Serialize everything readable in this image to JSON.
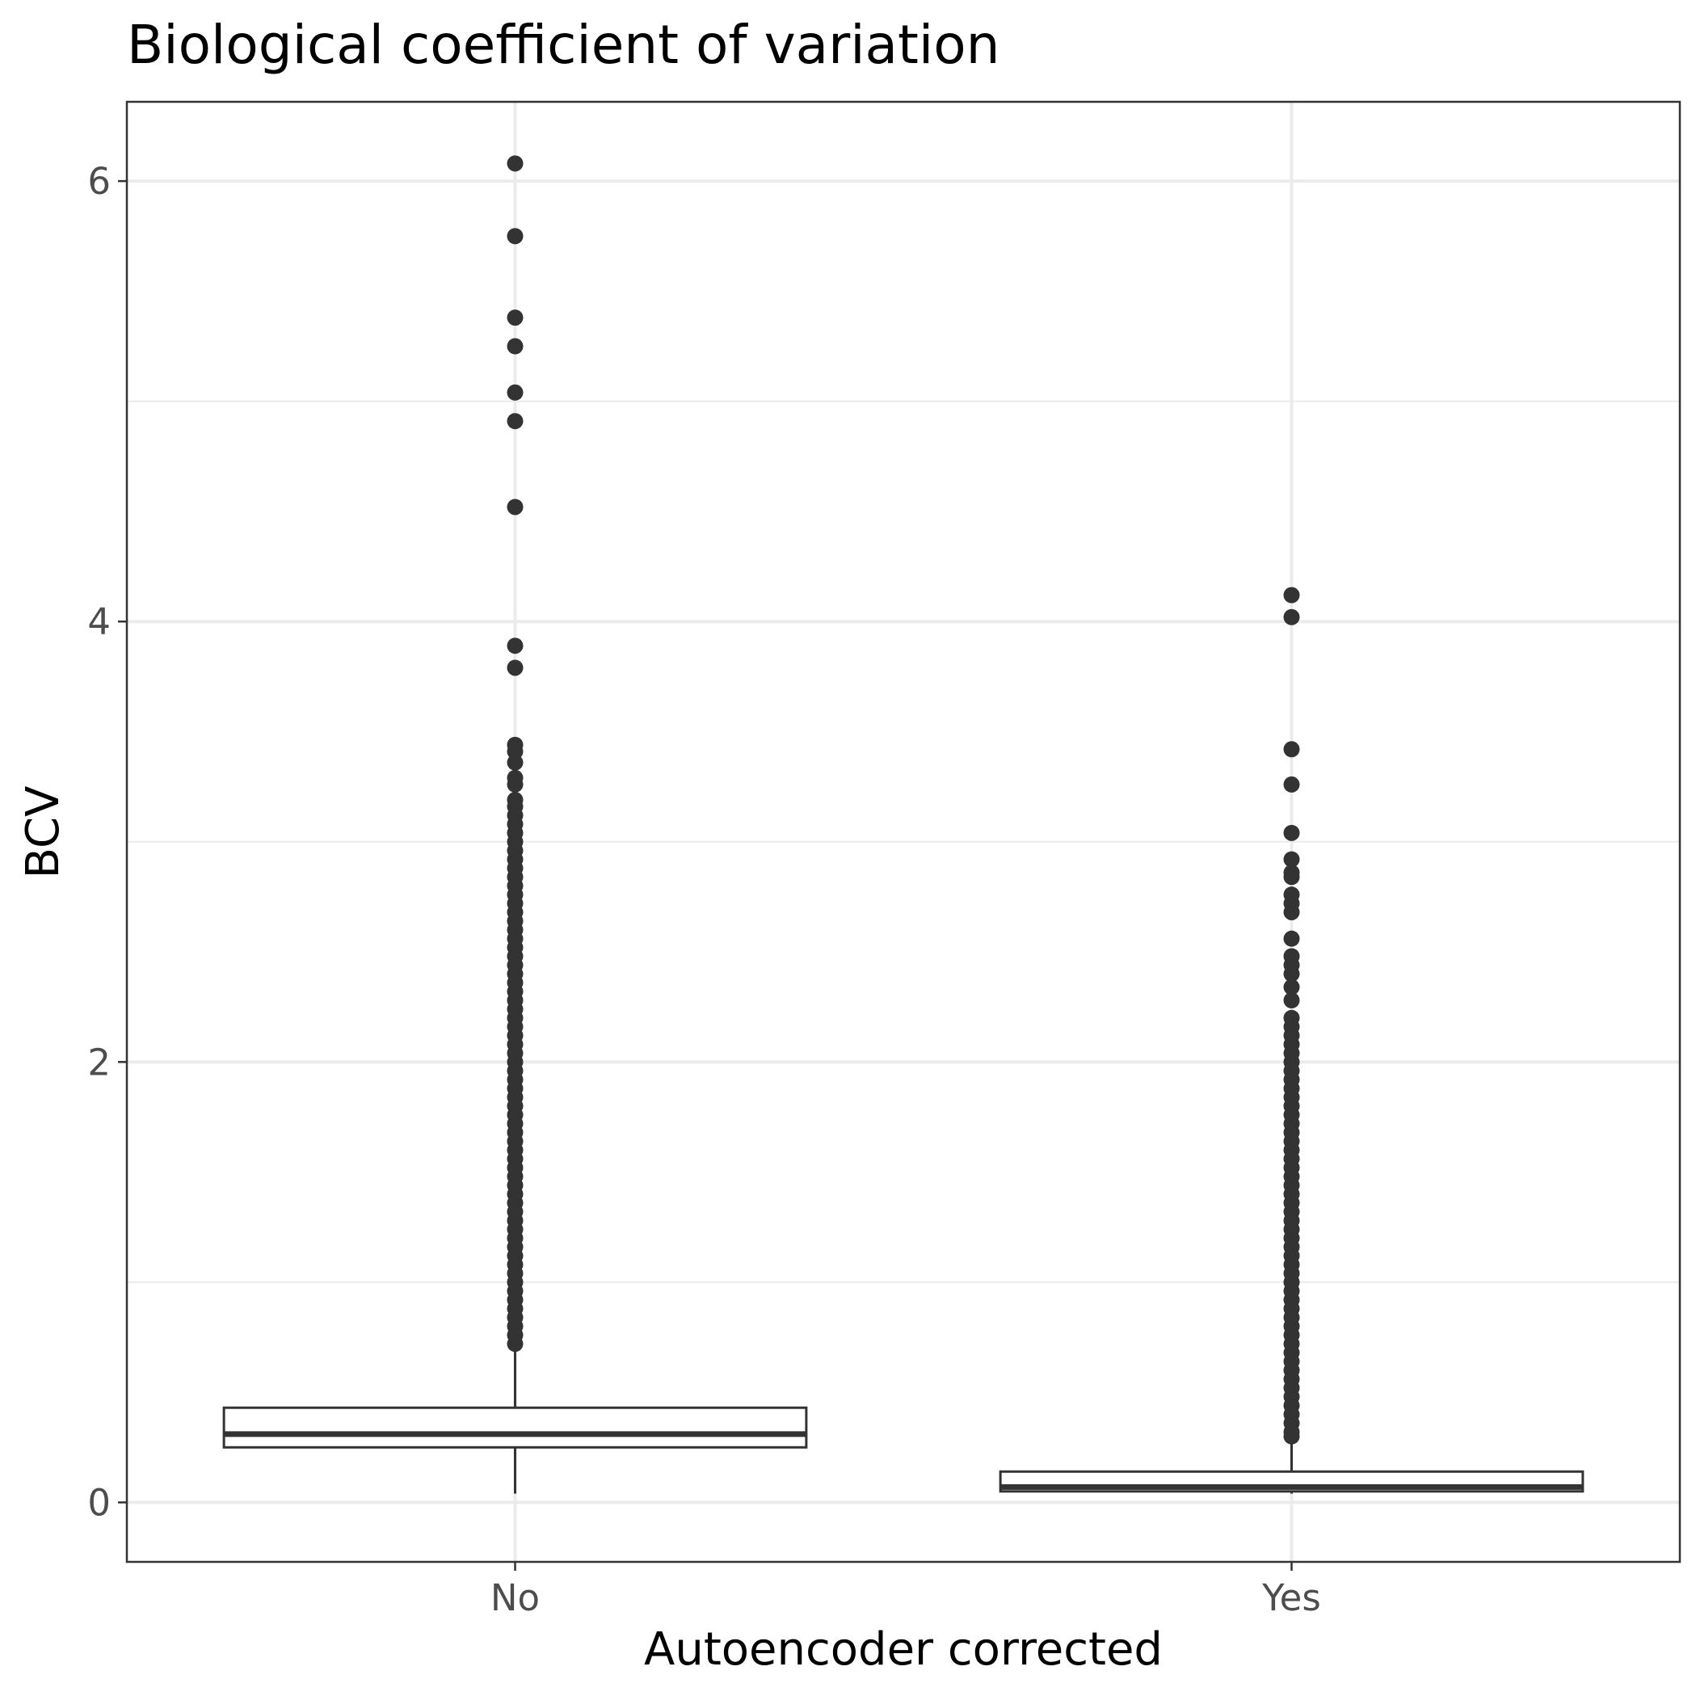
{
  "chart_data": {
    "type": "boxplot",
    "title": "Biological coefficient of variation",
    "xlabel": "Autoencoder corrected",
    "ylabel": "BCV",
    "categories": [
      "No",
      "Yes"
    ],
    "ylim": [
      -0.27,
      6.36
    ],
    "yticks": [
      0,
      2,
      4,
      6
    ],
    "grid": true,
    "colors": {
      "box_line": "#333333",
      "box_fill": "#ffffff",
      "point": "#333333",
      "grid": "#ebebeb",
      "panel_border": "#333333"
    },
    "boxes": [
      {
        "category": "No",
        "whisker_low": 0.04,
        "q1": 0.25,
        "median": 0.31,
        "q3": 0.43,
        "whisker_high": 0.7,
        "outliers": [
          6.08,
          5.75,
          5.38,
          5.25,
          5.04,
          4.91,
          4.52,
          3.89,
          3.79,
          3.44,
          3.41,
          3.36,
          3.29,
          3.26,
          3.19,
          3.16,
          3.12,
          3.08,
          3.04,
          3.0,
          2.96,
          2.92,
          2.88,
          2.84,
          2.8,
          2.76,
          2.72,
          2.68,
          2.64,
          2.6,
          2.56,
          2.52,
          2.48,
          2.44,
          2.4,
          2.36,
          2.32,
          2.28,
          2.24,
          2.2,
          2.16,
          2.12,
          2.08,
          2.04,
          2.0,
          1.96,
          1.92,
          1.88,
          1.84,
          1.8,
          1.76,
          1.72,
          1.68,
          1.64,
          1.6,
          1.56,
          1.52,
          1.48,
          1.44,
          1.4,
          1.36,
          1.32,
          1.28,
          1.24,
          1.2,
          1.16,
          1.12,
          1.08,
          1.04,
          1.0,
          0.96,
          0.92,
          0.88,
          0.84,
          0.8,
          0.76,
          0.72
        ]
      },
      {
        "category": "Yes",
        "whisker_low": 0.04,
        "q1": 0.05,
        "median": 0.07,
        "q3": 0.14,
        "whisker_high": 0.28,
        "outliers": [
          4.12,
          4.02,
          3.42,
          3.26,
          3.04,
          2.92,
          2.86,
          2.84,
          2.76,
          2.72,
          2.68,
          2.56,
          2.48,
          2.44,
          2.4,
          2.34,
          2.28,
          2.2,
          2.16,
          2.12,
          2.08,
          2.04,
          2.0,
          1.96,
          1.92,
          1.88,
          1.84,
          1.8,
          1.76,
          1.72,
          1.68,
          1.64,
          1.6,
          1.56,
          1.52,
          1.48,
          1.44,
          1.4,
          1.36,
          1.32,
          1.28,
          1.24,
          1.2,
          1.16,
          1.12,
          1.08,
          1.04,
          1.0,
          0.96,
          0.92,
          0.88,
          0.84,
          0.8,
          0.76,
          0.72,
          0.68,
          0.64,
          0.6,
          0.56,
          0.52,
          0.48,
          0.44,
          0.4,
          0.36,
          0.32,
          0.3
        ]
      }
    ]
  }
}
